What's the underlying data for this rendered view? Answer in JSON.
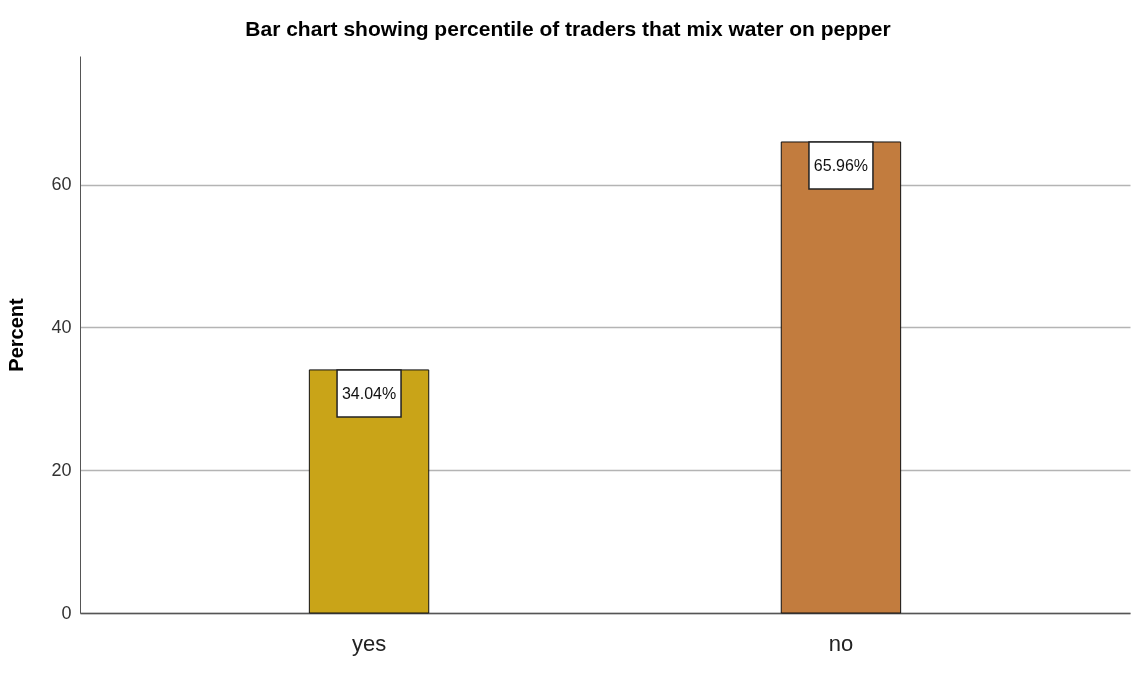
{
  "chart_data": {
    "type": "bar",
    "title": "Bar  chart showing percentile of traders that mix water on pepper",
    "ylabel": "Percent",
    "categories": [
      "yes",
      "no"
    ],
    "values": [
      34.04,
      65.96
    ],
    "colors": [
      "#c9a418",
      "#c27c3e"
    ],
    "value_labels": [
      "34.04%",
      "65.96%"
    ],
    "ylim": [
      0,
      78
    ],
    "yticks": [
      0,
      20,
      40,
      60
    ],
    "grid": "y"
  }
}
